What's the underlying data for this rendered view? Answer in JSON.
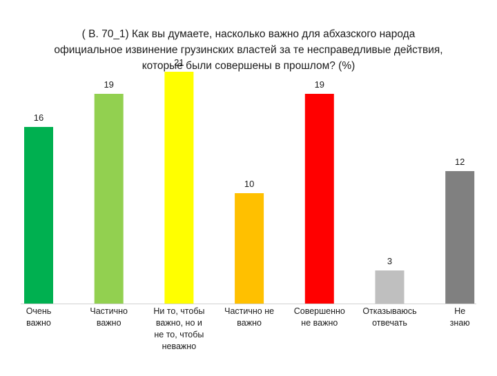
{
  "chart_data": {
    "type": "bar",
    "title": "( В. 70_1) Как вы думаете, насколько важно для абхазского народа официальное извинение грузинских властей за те несправедливые действия, которые были совершены в прошлом? (%)",
    "xlabel": "",
    "ylabel": "",
    "ylim": [
      0,
      21
    ],
    "grid": false,
    "legend": "none",
    "categories": [
      [
        "Очень",
        "важно"
      ],
      [
        "Частично",
        "важно"
      ],
      [
        "Ни то, чтобы",
        "важно, но и",
        "не то,  чтобы",
        "неважно"
      ],
      [
        "Частично не",
        "важно"
      ],
      [
        "Совершенно",
        "не важно"
      ],
      [
        "Отказываюсь",
        "отвечать"
      ],
      [
        "Не",
        "знаю"
      ]
    ],
    "values": [
      16,
      19,
      21,
      10,
      19,
      3,
      12
    ],
    "colors": [
      "#00b050",
      "#92d050",
      "#ffff00",
      "#ffc000",
      "#ff0000",
      "#bfbfbf",
      "#808080"
    ]
  }
}
